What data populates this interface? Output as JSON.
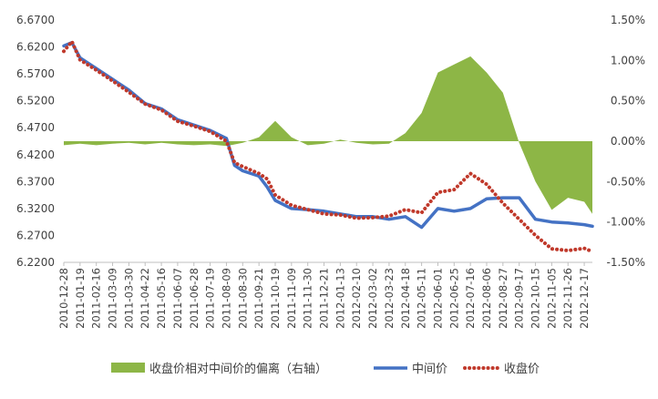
{
  "chart_data": {
    "type": "combo",
    "title": "",
    "xlabel": "",
    "ylabel": "",
    "x_tick_labels": [
      "2010-12-28",
      "2011-01-19",
      "2011-02-16",
      "2011-03-09",
      "2011-03-30",
      "2011-04-22",
      "2011-05-16",
      "2011-06-07",
      "2011-06-28",
      "2011-07-19",
      "2011-08-09",
      "2011-08-30",
      "2011-09-21",
      "2011-10-19",
      "2011-11-09",
      "2011-11-30",
      "2011-12-21",
      "2012-01-13",
      "2012-02-10",
      "2012-03-02",
      "2012-03-23",
      "2012-04-18",
      "2012-05-11",
      "2012-06-01",
      "2012-06-25",
      "2012-07-16",
      "2012-08-06",
      "2012-08-27",
      "2012-09-17",
      "2012-10-15",
      "2012-11-05",
      "2012-11-26",
      "2012-12-17"
    ],
    "left_axis": {
      "ylim": [
        6.22,
        6.67
      ],
      "ticks": [
        6.67,
        6.62,
        6.57,
        6.52,
        6.47,
        6.42,
        6.37,
        6.32,
        6.27,
        6.22
      ],
      "tick_labels": [
        "6.6700",
        "6.6200",
        "6.5700",
        "6.5200",
        "6.4700",
        "6.4200",
        "6.3700",
        "6.3200",
        "6.2700",
        "6.2200"
      ]
    },
    "right_axis": {
      "ylim": [
        -1.5,
        1.5
      ],
      "ticks": [
        1.5,
        1.0,
        0.5,
        0.0,
        -0.5,
        -1.0,
        -1.5
      ],
      "tick_labels": [
        "1.50%",
        "1.00%",
        "0.50%",
        "0.00%",
        "-0.50%",
        "-1.00%",
        "-1.50%"
      ]
    },
    "grid": false,
    "legend_position": "bottom",
    "series": [
      {
        "name": "收盘价相对中间价的偏离（右轴）",
        "type": "area",
        "axis": "right",
        "color": "#8db646",
        "x": [
          0,
          1,
          2,
          3,
          4,
          5,
          6,
          7,
          8,
          9,
          10,
          11,
          12,
          13,
          14,
          15,
          16,
          17,
          18,
          19,
          20,
          21,
          22,
          23,
          24,
          25,
          26,
          27,
          28,
          29,
          30,
          31,
          32,
          32.5
        ],
        "values": [
          -0.05,
          -0.03,
          -0.05,
          -0.03,
          -0.02,
          -0.04,
          -0.02,
          -0.04,
          -0.05,
          -0.04,
          -0.06,
          -0.02,
          0.05,
          0.25,
          0.05,
          -0.05,
          -0.03,
          0.02,
          -0.02,
          -0.04,
          -0.03,
          0.1,
          0.35,
          0.85,
          0.95,
          1.05,
          0.85,
          0.6,
          -0.02,
          -0.5,
          -0.85,
          -0.7,
          -0.75,
          -0.9
        ]
      },
      {
        "name": "中间价",
        "type": "line",
        "axis": "left",
        "color": "#4472c4",
        "x": [
          0,
          0.5,
          1,
          2,
          3,
          4,
          5,
          6,
          7,
          8,
          9,
          10,
          10.5,
          11,
          12,
          12.5,
          13,
          14,
          15,
          16,
          17,
          18,
          19,
          20,
          21,
          22,
          23,
          24,
          25,
          26,
          27,
          28,
          29,
          30,
          31,
          32,
          32.5
        ],
        "values": [
          6.622,
          6.628,
          6.6,
          6.58,
          6.56,
          6.54,
          6.515,
          6.505,
          6.485,
          6.475,
          6.465,
          6.45,
          6.4,
          6.39,
          6.38,
          6.36,
          6.335,
          6.32,
          6.318,
          6.315,
          6.31,
          6.305,
          6.305,
          6.3,
          6.305,
          6.285,
          6.32,
          6.315,
          6.32,
          6.338,
          6.34,
          6.34,
          6.3,
          6.295,
          6.293,
          6.29,
          6.287
        ]
      },
      {
        "name": "收盘价",
        "type": "dotted-line",
        "axis": "left",
        "color": "#c0392b",
        "x": [
          0,
          0.5,
          1,
          2,
          3,
          4,
          5,
          6,
          7,
          8,
          9,
          10,
          10.5,
          11,
          12,
          12.5,
          13,
          14,
          15,
          16,
          17,
          18,
          19,
          20,
          21,
          22,
          23,
          24,
          25,
          26,
          27,
          28,
          29,
          30,
          31,
          32,
          32.5
        ],
        "values": [
          6.612,
          6.63,
          6.596,
          6.577,
          6.557,
          6.536,
          6.514,
          6.503,
          6.482,
          6.473,
          6.463,
          6.445,
          6.405,
          6.398,
          6.385,
          6.375,
          6.345,
          6.326,
          6.318,
          6.31,
          6.308,
          6.302,
          6.303,
          6.306,
          6.318,
          6.312,
          6.35,
          6.355,
          6.385,
          6.365,
          6.33,
          6.3,
          6.27,
          6.245,
          6.242,
          6.246,
          6.24
        ]
      }
    ]
  }
}
